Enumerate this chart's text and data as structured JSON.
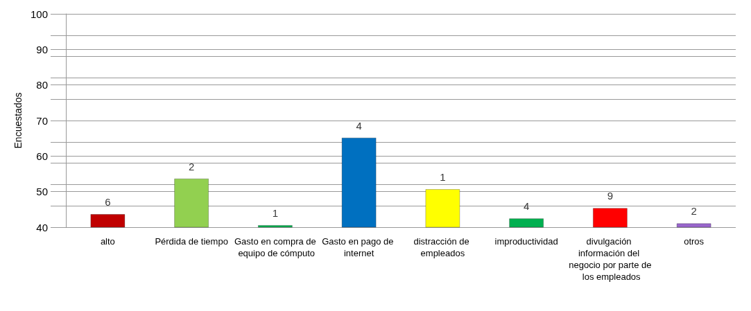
{
  "chart_data": {
    "type": "bar",
    "ylabel": "Encuestados",
    "categories": [
      "alto",
      "Pérdida de tiempo",
      "Gasto en compra de equipo de cómputo",
      "Gasto en pago de internet",
      "distracción de empleados",
      "improductividad",
      "divulgación información del negocio por parte de los empleados",
      "otros"
    ],
    "values": [
      43.7,
      53.7,
      40.6,
      65.2,
      50.7,
      42.5,
      45.4,
      41.1
    ],
    "annotations": [
      {
        "text": "6",
        "x": "alto",
        "y": 43.7
      },
      {
        "text": "2",
        "x": "Pérdida de tiempo",
        "y": 53.7
      },
      {
        "text": "1",
        "x": "Gasto en compra de equipo de cómputo",
        "y": 40.6
      },
      {
        "text": "4",
        "x": "Gasto en pago de internet",
        "y": 65.2
      },
      {
        "text": "1",
        "x": "distracción de empleados",
        "y": 50.7
      },
      {
        "text": "4",
        "x": "improductividad",
        "y": 42.5
      },
      {
        "text": "9",
        "x": "divulgación información del negocio por parte de los empleados",
        "y": 45.4
      },
      {
        "text": "2",
        "x": "otros",
        "y": 41.1
      }
    ],
    "colors": [
      "#c00000",
      "#92d050",
      "#00b050",
      "#0070c0",
      "#ffff00",
      "#00b050",
      "#ff0000",
      "#9966cc"
    ],
    "ylim": [
      40,
      100
    ],
    "yticks": [
      40,
      {
        "value": 46,
        "label": null
      },
      50,
      {
        "value": 52,
        "label": null
      },
      {
        "value": 58,
        "label": null
      },
      60,
      {
        "value": 64,
        "label": null
      },
      70,
      {
        "value": 76,
        "label": null
      },
      80,
      {
        "value": 82,
        "label": null
      },
      {
        "value": 88,
        "label": null
      },
      90,
      {
        "value": 94,
        "label": null
      },
      100
    ],
    "grid": "y"
  }
}
